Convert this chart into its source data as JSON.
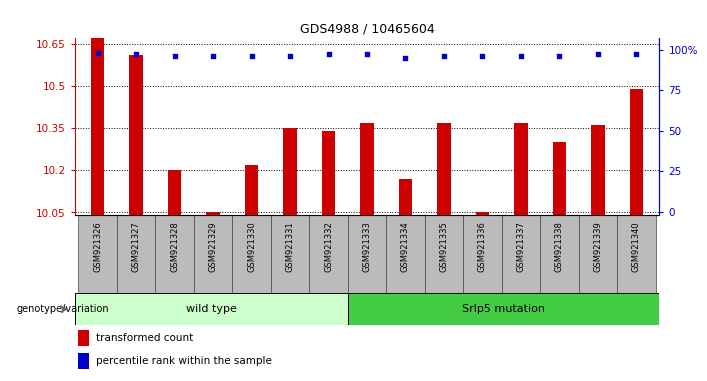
{
  "title": "GDS4988 / 10465604",
  "samples": [
    "GSM921326",
    "GSM921327",
    "GSM921328",
    "GSM921329",
    "GSM921330",
    "GSM921331",
    "GSM921332",
    "GSM921333",
    "GSM921334",
    "GSM921335",
    "GSM921336",
    "GSM921337",
    "GSM921338",
    "GSM921339",
    "GSM921340"
  ],
  "transformed_count": [
    10.72,
    10.61,
    10.2,
    10.05,
    10.22,
    10.35,
    10.34,
    10.37,
    10.17,
    10.37,
    10.05,
    10.37,
    10.3,
    10.36,
    10.49
  ],
  "percentile_rank": [
    98,
    97,
    96,
    96,
    96,
    96,
    97,
    97,
    95,
    96,
    96,
    96,
    96,
    97,
    97
  ],
  "ylim_left": [
    10.04,
    10.67
  ],
  "yticks_left": [
    10.05,
    10.2,
    10.35,
    10.5,
    10.65
  ],
  "ytick_labels_left": [
    "10.05",
    "10.2",
    "10.35",
    "10.5",
    "10.65"
  ],
  "ylim_right": [
    -2.0,
    107
  ],
  "yticks_right": [
    0,
    25,
    50,
    75,
    100
  ],
  "ytick_labels_right": [
    "0",
    "25",
    "50",
    "75",
    "100%"
  ],
  "bar_color": "#cc0000",
  "dot_color": "#0000cc",
  "wt_count": 7,
  "mut_count": 8,
  "wild_type_label": "wild type",
  "mutation_label": "Srlp5 mutation",
  "genotype_label": "genotype/variation",
  "legend_bar_label": "transformed count",
  "legend_dot_label": "percentile rank within the sample",
  "wild_type_color": "#ccffcc",
  "mutation_color": "#44cc44",
  "xticklabel_bg": "#bbbbbb",
  "background_color": "#ffffff"
}
